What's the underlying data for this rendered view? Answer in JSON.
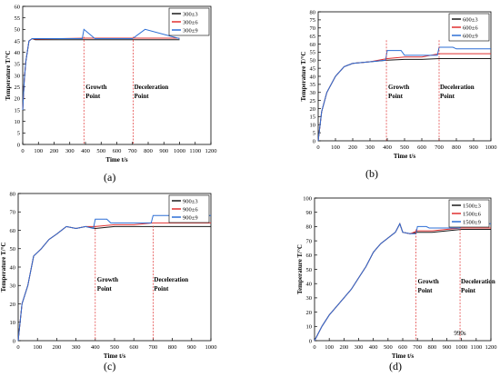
{
  "captions": [
    "(a)",
    "(b)",
    "(c)",
    "(d)"
  ],
  "chart_data": [
    {
      "type": "line",
      "xlabel": "Time t/s",
      "ylabel": "Temperature T/°C",
      "xlim": [
        0,
        1200
      ],
      "ylim": [
        0,
        60
      ],
      "xticks": [
        "0",
        "100",
        "200",
        "300",
        "400",
        "500",
        "600",
        "700",
        "800",
        "900",
        "1000",
        "1100",
        "1200"
      ],
      "yticks": [
        "0",
        "5",
        "10",
        "15",
        "20",
        "25",
        "30",
        "35",
        "40",
        "45",
        "50",
        "55",
        "60"
      ],
      "annotations": [
        {
          "x": 390,
          "lines": [
            "Growth",
            "Point"
          ]
        },
        {
          "x": 705,
          "lines": [
            "Deceleration",
            "Point"
          ]
        }
      ],
      "series": [
        {
          "name": "300±3",
          "color": "#1a1a1a",
          "x": [
            0,
            10,
            20,
            40,
            60,
            80,
            400,
            700,
            1000
          ],
          "y": [
            15,
            28,
            36,
            45,
            46,
            45.5,
            45.5,
            45.5,
            45.5
          ]
        },
        {
          "name": "300±6",
          "color": "#e03030",
          "x": [
            0,
            10,
            20,
            40,
            60,
            80,
            400,
            700,
            1000
          ],
          "y": [
            15,
            28,
            36,
            45,
            46,
            45.8,
            46.2,
            46.2,
            46.2
          ]
        },
        {
          "name": "300±9",
          "color": "#2d6fd6",
          "x": [
            0,
            10,
            20,
            40,
            60,
            80,
            380,
            390,
            460,
            700,
            780,
            1000
          ],
          "y": [
            15,
            28,
            36,
            45,
            46,
            46,
            46,
            50,
            46,
            46,
            50,
            46
          ]
        }
      ]
    },
    {
      "type": "line",
      "xlabel": "Time t/s",
      "ylabel": "Temperature T/°C",
      "xlim": [
        0,
        1000
      ],
      "ylim": [
        0,
        80
      ],
      "xticks": [
        "0",
        "100",
        "200",
        "300",
        "400",
        "500",
        "600",
        "700",
        "800",
        "900",
        "1000"
      ],
      "yticks": [
        "0",
        "5",
        "10",
        "15",
        "20",
        "25",
        "30",
        "35",
        "40",
        "45",
        "50",
        "55",
        "60",
        "65",
        "70",
        "75",
        "80"
      ],
      "annotations": [
        {
          "x": 395,
          "lines": [
            "Growth",
            "Point"
          ]
        },
        {
          "x": 700,
          "lines": [
            "Deceleration",
            "Point"
          ]
        }
      ],
      "series": [
        {
          "name": "600±3",
          "color": "#1a1a1a",
          "x": [
            0,
            20,
            50,
            100,
            150,
            200,
            300,
            400,
            500,
            600,
            700,
            800,
            1000
          ],
          "y": [
            0,
            18,
            30,
            40,
            46,
            48,
            49,
            50,
            50.5,
            50.5,
            51,
            51,
            51
          ]
        },
        {
          "name": "600±6",
          "color": "#e03030",
          "x": [
            0,
            20,
            50,
            100,
            150,
            200,
            300,
            400,
            500,
            600,
            700,
            800,
            1000
          ],
          "y": [
            0,
            18,
            30,
            40,
            46,
            48,
            49,
            51,
            52,
            52,
            54,
            54,
            54
          ]
        },
        {
          "name": "600±9",
          "color": "#2d6fd6",
          "x": [
            0,
            20,
            50,
            100,
            150,
            200,
            300,
            390,
            400,
            480,
            500,
            690,
            700,
            780,
            800,
            1000
          ],
          "y": [
            0,
            18,
            30,
            40,
            46,
            48,
            49,
            50,
            56,
            56,
            53,
            53,
            58,
            58,
            57,
            57
          ]
        }
      ]
    },
    {
      "type": "line",
      "xlabel": "Time t/s",
      "ylabel": "Temperature T/°C",
      "xlim": [
        0,
        1000
      ],
      "ylim": [
        0,
        80
      ],
      "xticks": [
        "0",
        "100",
        "200",
        "300",
        "400",
        "500",
        "600",
        "700",
        "800",
        "900",
        "1000"
      ],
      "yticks": [
        "0",
        "10",
        "20",
        "30",
        "40",
        "50",
        "60",
        "70",
        "80"
      ],
      "annotations": [
        {
          "x": 400,
          "lines": [
            "Growth",
            "Point"
          ]
        },
        {
          "x": 700,
          "lines": [
            "Deceleration",
            "Point"
          ]
        }
      ],
      "series": [
        {
          "name": "900±3",
          "color": "#1a1a1a",
          "x": [
            0,
            20,
            50,
            80,
            120,
            160,
            200,
            250,
            300,
            350,
            400,
            500,
            600,
            700,
            800,
            1000
          ],
          "y": [
            0,
            20,
            30,
            46,
            50,
            55,
            58,
            62,
            61,
            62,
            61,
            62,
            62,
            62,
            62,
            62
          ]
        },
        {
          "name": "900±6",
          "color": "#e03030",
          "x": [
            0,
            20,
            50,
            80,
            120,
            160,
            200,
            250,
            300,
            350,
            400,
            500,
            600,
            700,
            800,
            1000
          ],
          "y": [
            0,
            20,
            30,
            46,
            50,
            55,
            58,
            62,
            61,
            62,
            62,
            63,
            63,
            64,
            64,
            64
          ]
        },
        {
          "name": "900±9",
          "color": "#2d6fd6",
          "x": [
            0,
            20,
            50,
            80,
            120,
            160,
            200,
            250,
            300,
            350,
            390,
            400,
            460,
            480,
            690,
            700,
            780,
            800,
            1000
          ],
          "y": [
            0,
            20,
            30,
            46,
            50,
            55,
            58,
            62,
            61,
            62,
            61,
            66,
            66,
            64,
            64,
            68,
            68,
            68,
            68
          ]
        }
      ]
    },
    {
      "type": "line",
      "xlabel": "Time t/s",
      "ylabel": "Temperature T/°C",
      "xlim": [
        0,
        1200
      ],
      "ylim": [
        0,
        100
      ],
      "xticks": [
        "0",
        "100",
        "200",
        "300",
        "400",
        "500",
        "600",
        "700",
        "800",
        "900",
        "1000",
        "1100",
        "1200"
      ],
      "yticks": [
        "0",
        "10",
        "20",
        "30",
        "40",
        "50",
        "60",
        "70",
        "80",
        "90",
        "100"
      ],
      "annotations": [
        {
          "x": 690,
          "lines": [
            "Growth",
            "Point"
          ]
        },
        {
          "x": 990,
          "lines": [
            "Deceleration",
            "Point"
          ]
        },
        {
          "x": 990,
          "lines": [
            "990s"
          ]
        }
      ],
      "series": [
        {
          "name": "1500±3",
          "color": "#1a1a1a",
          "x": [
            0,
            50,
            100,
            150,
            200,
            250,
            300,
            350,
            400,
            450,
            500,
            550,
            580,
            600,
            650,
            700,
            800,
            900,
            1000,
            1100,
            1200
          ],
          "y": [
            0,
            10,
            18,
            24,
            30,
            36,
            44,
            52,
            62,
            68,
            72,
            76,
            82,
            76,
            75,
            76,
            76,
            77,
            78,
            78,
            78
          ]
        },
        {
          "name": "1500±6",
          "color": "#e03030",
          "x": [
            0,
            50,
            100,
            150,
            200,
            250,
            300,
            350,
            400,
            450,
            500,
            550,
            580,
            600,
            650,
            700,
            800,
            900,
            1000,
            1100,
            1200
          ],
          "y": [
            0,
            10,
            18,
            24,
            30,
            36,
            44,
            52,
            62,
            68,
            72,
            76,
            82,
            76,
            75,
            77,
            77,
            78,
            79,
            79,
            79
          ]
        },
        {
          "name": "1500±9",
          "color": "#2d6fd6",
          "x": [
            0,
            50,
            100,
            150,
            200,
            250,
            300,
            350,
            400,
            450,
            500,
            550,
            580,
            600,
            650,
            690,
            700,
            760,
            780,
            990,
            1000,
            1060,
            1080,
            1200
          ],
          "y": [
            0,
            10,
            18,
            24,
            30,
            36,
            44,
            52,
            62,
            68,
            72,
            76,
            82,
            76,
            75,
            75,
            80,
            80,
            79,
            79,
            84,
            84,
            82,
            82
          ]
        }
      ]
    }
  ]
}
